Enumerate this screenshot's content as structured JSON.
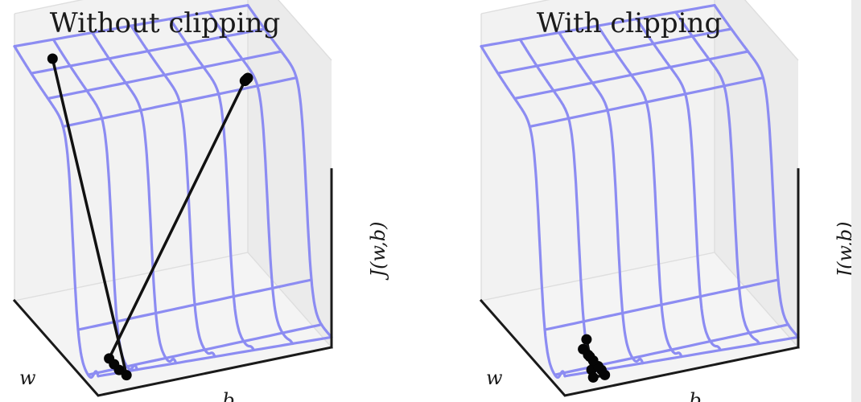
{
  "colors": {
    "surface": "#8c8cf2",
    "trajectory": "#111111",
    "axis": "#1a1a1a",
    "pane": "#ebebeb"
  },
  "panels": [
    {
      "id": "without",
      "title": "Without clipping",
      "xlabel": "w",
      "ylabel": "b",
      "zlabel": "J(w,b)",
      "trajectory": [
        [
          0.88,
          0.12,
          2.2
        ],
        [
          0.08,
          0.15,
          0.05
        ],
        [
          0.14,
          0.14,
          0.05
        ],
        [
          0.2,
          0.14,
          0.05
        ],
        [
          0.26,
          0.14,
          0.05
        ],
        [
          0.98,
          0.98,
          1.55
        ],
        [
          0.985,
          0.985,
          1.55
        ],
        [
          0.99,
          0.99,
          1.55
        ],
        [
          0.995,
          0.995,
          1.55
        ],
        [
          1.0,
          1.0,
          1.55
        ]
      ]
    },
    {
      "id": "with",
      "title": "With clipping",
      "xlabel": "w",
      "ylabel": "b",
      "zlabel": "J(w,b)",
      "trajectory": [
        [
          0.16,
          0.15,
          0.3
        ],
        [
          0.12,
          0.15,
          0.18
        ],
        [
          0.1,
          0.15,
          0.08
        ],
        [
          0.08,
          0.15,
          0.03
        ],
        [
          0.08,
          0.2,
          0.03
        ],
        [
          0.12,
          0.2,
          0.04
        ],
        [
          0.16,
          0.2,
          0.04
        ],
        [
          0.22,
          0.2,
          0.04
        ],
        [
          0.28,
          0.2,
          0.04
        ],
        [
          0.34,
          0.2,
          0.04
        ]
      ]
    }
  ]
}
